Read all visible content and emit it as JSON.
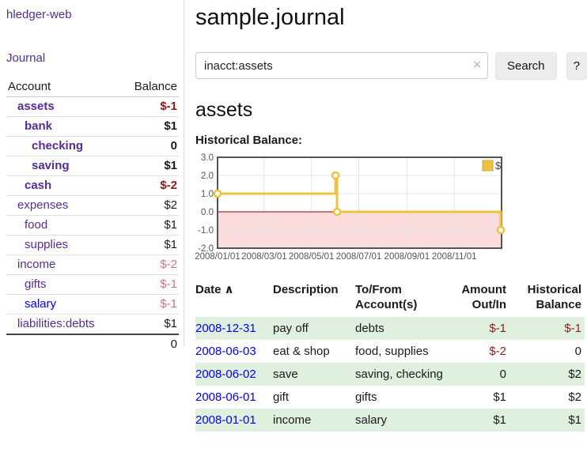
{
  "app": {
    "brand": "hledger-web"
  },
  "sidebar": {
    "journal_link": "Journal",
    "accounts": {
      "headers": {
        "account": "Account",
        "balance": "Balance"
      },
      "rows": [
        {
          "name": "assets",
          "balance": "$-1",
          "level": 1,
          "in_query": true,
          "negative": true,
          "visited": true
        },
        {
          "name": "bank",
          "balance": "$1",
          "level": 2,
          "in_query": true,
          "negative": false,
          "visited": true
        },
        {
          "name": "checking",
          "balance": "0",
          "level": 3,
          "in_query": true,
          "negative": false,
          "visited": true
        },
        {
          "name": "saving",
          "balance": "$1",
          "level": 3,
          "in_query": true,
          "negative": false,
          "visited": true
        },
        {
          "name": "cash",
          "balance": "$-2",
          "level": 2,
          "in_query": true,
          "negative": true,
          "visited": true
        },
        {
          "name": "expenses",
          "balance": "$2",
          "level": 1,
          "in_query": false,
          "negative": false,
          "visited": true
        },
        {
          "name": "food",
          "balance": "$1",
          "level": 2,
          "in_query": false,
          "negative": false,
          "visited": true
        },
        {
          "name": "supplies",
          "balance": "$1",
          "level": 2,
          "in_query": false,
          "negative": false,
          "visited": true
        },
        {
          "name": "income",
          "balance": "$-2",
          "level": 1,
          "in_query": false,
          "negative": true,
          "visited": true
        },
        {
          "name": "gifts",
          "balance": "$-1",
          "level": 2,
          "in_query": false,
          "negative": true,
          "visited": true
        },
        {
          "name": "salary",
          "balance": "$-1",
          "level": 2,
          "in_query": false,
          "negative": true,
          "visited": false
        },
        {
          "name": "liabilities:debts",
          "balance": "$1",
          "level": 1,
          "in_query": false,
          "negative": false,
          "visited": true
        }
      ],
      "total": "0"
    }
  },
  "main": {
    "title": "sample.journal",
    "search": {
      "value": "inacct:assets",
      "clear": "×",
      "button": "Search",
      "help": "?"
    },
    "account_heading": "assets",
    "chart_heading": "Historical Balance:"
  },
  "chart_data": {
    "type": "line",
    "title": "Historical Balance",
    "legend": [
      {
        "label": "$",
        "color": "#EDC240"
      }
    ],
    "xlim": [
      "2008-01-01",
      "2009-01-01"
    ],
    "ylim": [
      -2,
      3
    ],
    "x_ticks": [
      {
        "date": "2008-01-01",
        "label": "2008/01/01"
      },
      {
        "date": "2008-03-01",
        "label": "2008/03/01"
      },
      {
        "date": "2008-05-01",
        "label": "2008/05/01"
      },
      {
        "date": "2008-07-01",
        "label": "2008/07/01"
      },
      {
        "date": "2008-09-01",
        "label": "2008/09/01"
      },
      {
        "date": "2008-11-01",
        "label": "2008/11/01"
      }
    ],
    "y_ticks": [
      {
        "value": 3,
        "label": "3.0"
      },
      {
        "value": 2,
        "label": "2.0"
      },
      {
        "value": 1,
        "label": "1.0"
      },
      {
        "value": 0,
        "label": "0.0"
      },
      {
        "value": -1,
        "label": "-1.0"
      },
      {
        "value": -2,
        "label": "-2.0"
      }
    ],
    "series": [
      {
        "name": "$",
        "color": "#EDC240",
        "step": true,
        "points": [
          {
            "date": "2008-01-01",
            "value": 1
          },
          {
            "date": "2008-06-01",
            "value": 2
          },
          {
            "date": "2008-06-03",
            "value": 0
          },
          {
            "date": "2008-12-31",
            "value": -1
          }
        ]
      }
    ],
    "negative_region_fill": "#fadcdc",
    "zero_line_color": "#8b0000",
    "grid_color": "#e4e4e4",
    "border_color": "#545454",
    "tick_label_color": "#555555"
  },
  "transactions": {
    "headers": {
      "date": "Date",
      "sort_arrow": "∧",
      "description": "Description",
      "accounts": "To/From Account(s)",
      "amount": "Amount Out/In",
      "balance": "Historical Balance"
    },
    "rows": [
      {
        "date": "2008-12-31",
        "description": "pay off",
        "accounts": "debts",
        "amount": "$-1",
        "amount_neg": true,
        "balance": "$-1",
        "balance_neg": true
      },
      {
        "date": "2008-06-03",
        "description": "eat & shop",
        "accounts": "food, supplies",
        "amount": "$-2",
        "amount_neg": true,
        "balance": "0",
        "balance_neg": false
      },
      {
        "date": "2008-06-02",
        "description": "save",
        "accounts": "saving, checking",
        "amount": "0",
        "amount_neg": false,
        "balance": "$2",
        "balance_neg": false
      },
      {
        "date": "2008-06-01",
        "description": "gift",
        "accounts": "gifts",
        "amount": "$1",
        "amount_neg": false,
        "balance": "$2",
        "balance_neg": false
      },
      {
        "date": "2008-01-01",
        "description": "income",
        "accounts": "salary",
        "amount": "$1",
        "amount_neg": false,
        "balance": "$1",
        "balance_neg": false
      }
    ]
  }
}
